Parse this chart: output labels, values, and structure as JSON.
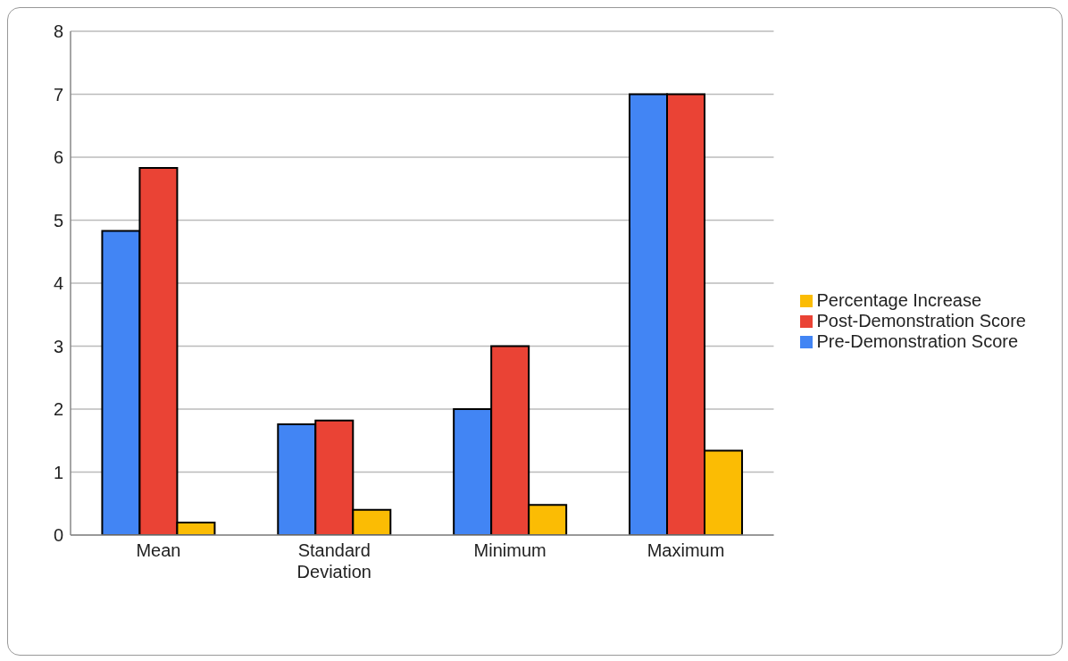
{
  "chart_data": {
    "type": "bar",
    "categories": [
      "Mean",
      "Standard Deviation",
      "Minimum",
      "Maximum"
    ],
    "series": [
      {
        "name": "Pre-Demonstration Score",
        "color": "#4285f4",
        "values": [
          4.83,
          1.76,
          2,
          7
        ]
      },
      {
        "name": "Post-Demonstration Score",
        "color": "#ea4335",
        "values": [
          5.83,
          1.82,
          3,
          7
        ]
      },
      {
        "name": "Percentage Increase",
        "color": "#fbbc04",
        "values": [
          0.2,
          0.4,
          0.48,
          1.34
        ]
      }
    ],
    "ylim": [
      0,
      8
    ],
    "yticks": [
      0,
      1,
      2,
      3,
      4,
      5,
      6,
      7,
      8
    ],
    "grid": "y",
    "legend": "right"
  }
}
